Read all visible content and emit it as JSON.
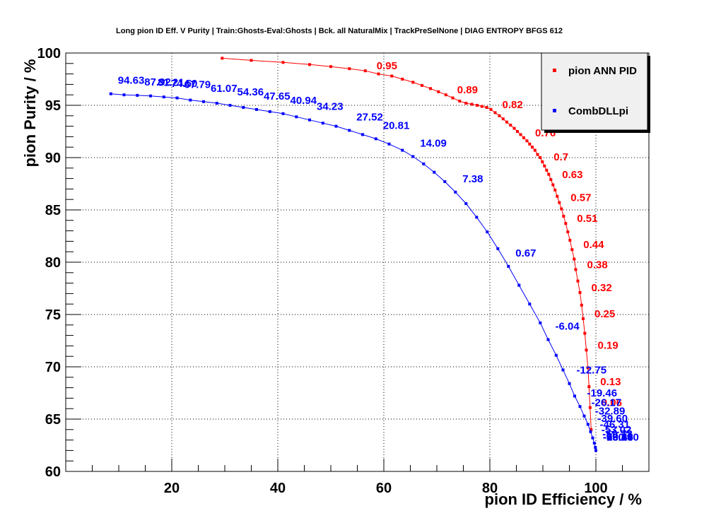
{
  "chart_data": {
    "type": "scatter",
    "title": "Long pion ID Eff. V Purity | Train:Ghosts-Eval:Ghosts | Bck. all NaturalMix | TrackPreSelNone | DIAG ENTROPY BFGS 612",
    "xlabel": "pion ID Efficiency / %",
    "ylabel": "pion Purity / %",
    "xlim": [
      0,
      110
    ],
    "ylim": [
      60,
      100
    ],
    "x_ticks": [
      20,
      40,
      60,
      80,
      100
    ],
    "y_ticks": [
      60,
      65,
      70,
      75,
      80,
      85,
      90,
      95,
      100
    ],
    "grid": true,
    "legend_position": "top-right",
    "series": [
      {
        "name": "pion ANN PID",
        "color": "#ff0000",
        "points": [
          [
            29.5,
            99.5
          ],
          [
            35.0,
            99.3
          ],
          [
            41.0,
            99.1
          ],
          [
            46.0,
            98.9
          ],
          [
            50.0,
            98.7
          ],
          [
            53.5,
            98.5
          ],
          [
            56.5,
            98.3
          ],
          [
            59.0,
            98.0
          ],
          [
            61.5,
            97.8
          ],
          [
            63.5,
            97.5
          ],
          [
            65.5,
            97.2
          ],
          [
            67.2,
            96.9
          ],
          [
            68.8,
            96.6
          ],
          [
            70.3,
            96.3
          ],
          [
            71.7,
            96.0
          ],
          [
            73.0,
            95.7
          ],
          [
            74.3,
            95.4
          ],
          [
            75.5,
            95.2
          ],
          [
            76.6,
            95.1
          ],
          [
            77.6,
            95.0
          ],
          [
            78.5,
            94.9
          ],
          [
            79.4,
            94.8
          ],
          [
            80.2,
            94.6
          ],
          [
            81.0,
            94.3
          ],
          [
            81.8,
            94.0
          ],
          [
            82.5,
            93.7
          ],
          [
            83.2,
            93.4
          ],
          [
            83.9,
            93.1
          ],
          [
            84.6,
            92.8
          ],
          [
            85.2,
            92.5
          ],
          [
            85.8,
            92.2
          ],
          [
            86.4,
            91.9
          ],
          [
            87.0,
            91.6
          ],
          [
            87.5,
            91.3
          ],
          [
            88.0,
            91.0
          ],
          [
            88.5,
            90.7
          ],
          [
            89.0,
            90.3
          ],
          [
            89.5,
            90.0
          ],
          [
            89.9,
            89.6
          ],
          [
            90.3,
            89.2
          ],
          [
            90.7,
            88.8
          ],
          [
            91.1,
            88.4
          ],
          [
            91.5,
            87.9
          ],
          [
            91.9,
            87.4
          ],
          [
            92.3,
            86.9
          ],
          [
            92.7,
            86.3
          ],
          [
            93.1,
            85.7
          ],
          [
            93.5,
            85.1
          ],
          [
            93.9,
            84.4
          ],
          [
            94.3,
            83.7
          ],
          [
            94.7,
            82.9
          ],
          [
            95.1,
            82.1
          ],
          [
            95.5,
            81.2
          ],
          [
            95.9,
            80.3
          ],
          [
            96.2,
            79.3
          ],
          [
            96.6,
            78.2
          ],
          [
            97.0,
            77.1
          ],
          [
            97.3,
            75.9
          ],
          [
            97.6,
            74.6
          ],
          [
            97.9,
            73.2
          ],
          [
            98.2,
            71.6
          ],
          [
            98.5,
            69.9
          ],
          [
            98.7,
            68.1
          ],
          [
            98.9,
            66.1
          ],
          [
            99.1,
            64.0
          ]
        ],
        "labels": [
          {
            "text": "0.95",
            "x": 56.5,
            "y": 98.3
          },
          {
            "text": "0.89",
            "x": 71.7,
            "y": 96.0
          },
          {
            "text": "0.82",
            "x": 80.2,
            "y": 94.6
          },
          {
            "text": "0.76",
            "x": 86.4,
            "y": 91.9
          },
          {
            "text": "0.7",
            "x": 89.9,
            "y": 89.6
          },
          {
            "text": "0.63",
            "x": 91.5,
            "y": 87.9
          },
          {
            "text": "0.57",
            "x": 93.1,
            "y": 85.7
          },
          {
            "text": "0.51",
            "x": 94.3,
            "y": 83.7
          },
          {
            "text": "0.44",
            "x": 95.5,
            "y": 81.2
          },
          {
            "text": "0.38",
            "x": 96.2,
            "y": 79.3
          },
          {
            "text": "0.32",
            "x": 97.0,
            "y": 77.1
          },
          {
            "text": "0.25",
            "x": 97.6,
            "y": 74.6
          },
          {
            "text": "0.19",
            "x": 98.2,
            "y": 71.6
          },
          {
            "text": "0.13",
            "x": 98.7,
            "y": 68.1
          },
          {
            "text": "0.06",
            "x": 98.9,
            "y": 66.1
          }
        ]
      },
      {
        "name": "CombDLLpi",
        "color": "#0000ff",
        "points": [
          [
            8.5,
            96.1
          ],
          [
            11.0,
            96.0
          ],
          [
            13.5,
            95.95
          ],
          [
            16.0,
            95.9
          ],
          [
            18.5,
            95.8
          ],
          [
            21.0,
            95.7
          ],
          [
            23.5,
            95.5
          ],
          [
            26.0,
            95.35
          ],
          [
            28.5,
            95.2
          ],
          [
            31.0,
            95.0
          ],
          [
            33.5,
            94.8
          ],
          [
            36.0,
            94.6
          ],
          [
            38.5,
            94.4
          ],
          [
            41.0,
            94.2
          ],
          [
            43.5,
            93.9
          ],
          [
            46.0,
            93.6
          ],
          [
            48.5,
            93.3
          ],
          [
            51.0,
            93.0
          ],
          [
            53.5,
            92.6
          ],
          [
            56.0,
            92.2
          ],
          [
            58.5,
            91.8
          ],
          [
            61.0,
            91.3
          ],
          [
            63.5,
            90.7
          ],
          [
            65.5,
            90.1
          ],
          [
            67.5,
            89.4
          ],
          [
            69.5,
            88.6
          ],
          [
            71.5,
            87.7
          ],
          [
            73.5,
            86.7
          ],
          [
            75.5,
            85.6
          ],
          [
            77.5,
            84.3
          ],
          [
            79.5,
            82.9
          ],
          [
            81.5,
            81.3
          ],
          [
            83.5,
            79.6
          ],
          [
            85.5,
            77.8
          ],
          [
            87.5,
            76.0
          ],
          [
            89.5,
            74.2
          ],
          [
            91.0,
            72.6
          ],
          [
            92.5,
            71.1
          ],
          [
            93.8,
            69.7
          ],
          [
            95.0,
            68.4
          ],
          [
            96.0,
            67.2
          ],
          [
            97.0,
            66.2
          ],
          [
            97.8,
            65.3
          ],
          [
            98.5,
            64.5
          ],
          [
            99.0,
            63.8
          ],
          [
            99.4,
            63.2
          ],
          [
            99.7,
            62.7
          ],
          [
            99.9,
            62.3
          ],
          [
            100.0,
            62.0
          ]
        ],
        "labels": [
          {
            "text": "94.63",
            "x": 8.5,
            "y": 96.1
          },
          {
            "text": "87.92",
            "x": 13.5,
            "y": 95.95
          },
          {
            "text": "81.21",
            "x": 16.0,
            "y": 95.9
          },
          {
            "text": "74.50",
            "x": 18.5,
            "y": 95.8
          },
          {
            "text": "67.79",
            "x": 21.0,
            "y": 95.7
          },
          {
            "text": "61.07",
            "x": 26.0,
            "y": 95.35
          },
          {
            "text": "54.36",
            "x": 31.0,
            "y": 95.0
          },
          {
            "text": "47.65",
            "x": 36.0,
            "y": 94.6
          },
          {
            "text": "40.94",
            "x": 41.0,
            "y": 94.2
          },
          {
            "text": "34.23",
            "x": 46.0,
            "y": 93.6
          },
          {
            "text": "27.52",
            "x": 53.5,
            "y": 92.6
          },
          {
            "text": "20.81",
            "x": 58.5,
            "y": 91.8
          },
          {
            "text": "14.09",
            "x": 65.5,
            "y": 90.1
          },
          {
            "text": "7.38",
            "x": 73.5,
            "y": 86.7
          },
          {
            "text": "0.67",
            "x": 83.5,
            "y": 79.6
          },
          {
            "text": "-6.04",
            "x": 91.0,
            "y": 72.6
          },
          {
            "text": "-12.75",
            "x": 95.0,
            "y": 68.4
          },
          {
            "text": "-19.46",
            "x": 97.0,
            "y": 66.2
          },
          {
            "text": "-26.17",
            "x": 97.8,
            "y": 65.3
          },
          {
            "text": "-32.89",
            "x": 98.5,
            "y": 64.5
          },
          {
            "text": "-39.60",
            "x": 99.0,
            "y": 63.8
          },
          {
            "text": "-46.31",
            "x": 99.4,
            "y": 63.2
          },
          {
            "text": "-53.02",
            "x": 99.7,
            "y": 62.7
          },
          {
            "text": "-59.73",
            "x": 99.9,
            "y": 62.3
          },
          {
            "text": "-66.44",
            "x": 100.0,
            "y": 62.0
          },
          {
            "text": "-73.15",
            "x": 100.0,
            "y": 62.0
          },
          {
            "text": "-79.86",
            "x": 100.0,
            "y": 62.0
          },
          {
            "text": "-86.58",
            "x": 100.0,
            "y": 62.0
          },
          {
            "text": "-93.29",
            "x": 100.0,
            "y": 62.0
          },
          {
            "text": "-100.00",
            "x": 100.0,
            "y": 62.0
          }
        ]
      }
    ]
  }
}
